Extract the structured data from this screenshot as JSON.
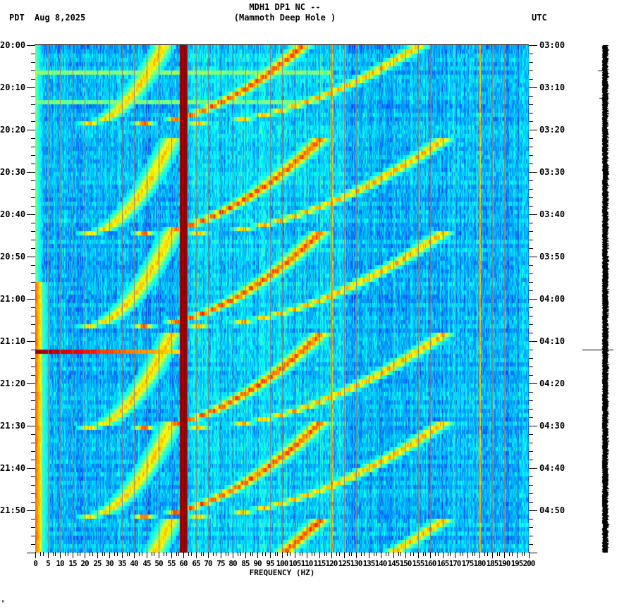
{
  "header": {
    "title_line1": "MDH1 DP1 NC --",
    "title_line2": "(Mammoth Deep Hole )",
    "timezone_left": "PDT",
    "date": "Aug 8,2025",
    "timezone_right": "UTC"
  },
  "footer": {
    "corner_mark": "ᴴ"
  },
  "chart_data": {
    "type": "heatmap",
    "title": "MDH1 DP1 NC -- (Mammoth Deep Hole )",
    "subtitle": "Aug 8,2025",
    "xlabel": "FREQUENCY (HZ)",
    "ylabel_left": "PDT",
    "ylabel_right": "UTC",
    "x_range": [
      0,
      200
    ],
    "x_ticks": [
      0,
      5,
      10,
      15,
      20,
      25,
      30,
      35,
      40,
      45,
      50,
      55,
      60,
      65,
      70,
      75,
      80,
      85,
      90,
      95,
      100,
      105,
      110,
      115,
      120,
      125,
      130,
      135,
      140,
      145,
      150,
      155,
      160,
      165,
      170,
      175,
      180,
      185,
      190,
      195,
      200
    ],
    "x_tick_labels": [
      "0",
      "5",
      "10",
      "15",
      "20",
      "25",
      "30",
      "35",
      "40",
      "45",
      "50",
      "55",
      "60",
      "65",
      "70",
      "75",
      "80",
      "85",
      "90",
      "95",
      "100",
      "105",
      "110",
      "115",
      "120",
      "125",
      "130",
      "135",
      "140",
      "145",
      "150",
      "155",
      "160",
      "165",
      "170",
      "175",
      "180",
      "185",
      "190",
      "195",
      "200"
    ],
    "y_range_minutes": [
      0,
      120
    ],
    "y_ticks_left": [
      "20:00",
      "20:10",
      "20:20",
      "20:30",
      "20:40",
      "20:50",
      "21:00",
      "21:10",
      "21:20",
      "21:30",
      "21:40",
      "21:50"
    ],
    "y_ticks_right": [
      "03:00",
      "03:10",
      "03:20",
      "03:30",
      "03:40",
      "03:50",
      "04:00",
      "04:10",
      "04:20",
      "04:30",
      "04:40",
      "04:50"
    ],
    "minor_tick_interval_min": 2,
    "grid": {
      "vertical_every_hz": 5,
      "color": "#808080"
    },
    "colormap": [
      "#0000ff",
      "#0080ff",
      "#00ffff",
      "#80ff80",
      "#ffff00",
      "#ff8000",
      "#ff0000",
      "#800000"
    ],
    "features": {
      "persistent_lines_hz": [
        {
          "freq": 60,
          "intensity": 1.0,
          "width_hz": 1.6
        },
        {
          "freq": 120,
          "intensity": 0.55,
          "width_hz": 0.5
        },
        {
          "freq": 180,
          "intensity": 0.5,
          "width_hz": 0.5
        },
        {
          "freq": 0.5,
          "intensity": 0.7,
          "width_hz": 1.2,
          "note": "low-frequency band strong after ~21:00"
        }
      ],
      "horizontal_events": [
        {
          "time": "21:12",
          "minute": 72,
          "freq_start": 0,
          "freq_end": 60,
          "intensity": 1.0
        },
        {
          "time": "20:06",
          "minute": 6.3,
          "freq_start": 0,
          "freq_end": 120,
          "intensity": 0.35
        },
        {
          "time": "20:13",
          "minute": 13.4,
          "freq_start": 0,
          "freq_end": 115,
          "intensity": 0.3
        }
      ],
      "glide_cycles_start_min": [
        -4,
        22,
        44,
        68,
        89,
        112
      ],
      "glide_cycle_period_min": 22,
      "glide_harmonics": [
        {
          "f_start": 22,
          "f_end": 55,
          "intensity": 0.55
        },
        {
          "f_start": 44,
          "f_end": 115,
          "intensity": 0.75
        },
        {
          "f_start": 66,
          "f_end": 165,
          "intensity": 0.6
        }
      ]
    }
  }
}
